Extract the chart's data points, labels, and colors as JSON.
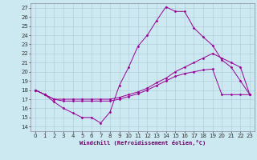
{
  "xlabel": "Windchill (Refroidissement éolien,°C)",
  "background_color": "#cce8f0",
  "grid_color": "#aac8d8",
  "line_color": "#990099",
  "xlim": [
    -0.5,
    23.5
  ],
  "ylim": [
    13.5,
    27.5
  ],
  "yticks": [
    14,
    15,
    16,
    17,
    18,
    19,
    20,
    21,
    22,
    23,
    24,
    25,
    26,
    27
  ],
  "xticks": [
    0,
    1,
    2,
    3,
    4,
    5,
    6,
    7,
    8,
    9,
    10,
    11,
    12,
    13,
    14,
    15,
    16,
    17,
    18,
    19,
    20,
    21,
    22,
    23
  ],
  "line1_x": [
    0,
    1,
    2,
    3,
    4,
    5,
    6,
    7,
    8,
    9,
    10,
    11,
    12,
    13,
    14,
    15,
    16,
    17,
    18,
    19,
    20,
    21,
    22,
    23
  ],
  "line1_y": [
    18.0,
    17.5,
    16.7,
    16.0,
    15.5,
    15.0,
    15.0,
    14.4,
    15.6,
    18.5,
    20.5,
    22.8,
    24.0,
    25.6,
    27.1,
    26.6,
    26.6,
    24.8,
    23.8,
    22.9,
    21.3,
    20.5,
    19.0,
    17.5
  ],
  "line2_x": [
    0,
    1,
    2,
    3,
    4,
    5,
    6,
    7,
    8,
    9,
    10,
    11,
    12,
    13,
    14,
    15,
    16,
    17,
    18,
    19,
    20,
    21,
    22,
    23
  ],
  "line2_y": [
    18.0,
    17.5,
    17.0,
    17.0,
    17.0,
    17.0,
    17.0,
    17.0,
    17.0,
    17.2,
    17.5,
    17.8,
    18.2,
    18.8,
    19.3,
    20.0,
    20.5,
    21.0,
    21.5,
    22.0,
    21.5,
    21.0,
    20.5,
    17.5
  ],
  "line3_x": [
    0,
    1,
    2,
    3,
    4,
    5,
    6,
    7,
    8,
    9,
    10,
    11,
    12,
    13,
    14,
    15,
    16,
    17,
    18,
    19,
    20,
    21,
    22,
    23
  ],
  "line3_y": [
    18.0,
    17.5,
    17.0,
    16.8,
    16.8,
    16.8,
    16.8,
    16.8,
    16.8,
    17.0,
    17.3,
    17.6,
    18.0,
    18.5,
    19.0,
    19.5,
    19.8,
    20.0,
    20.2,
    20.3,
    17.5,
    17.5,
    17.5,
    17.5
  ],
  "tick_fontsize": 5,
  "xlabel_fontsize": 5,
  "marker_size": 1.5,
  "line_width": 0.7
}
